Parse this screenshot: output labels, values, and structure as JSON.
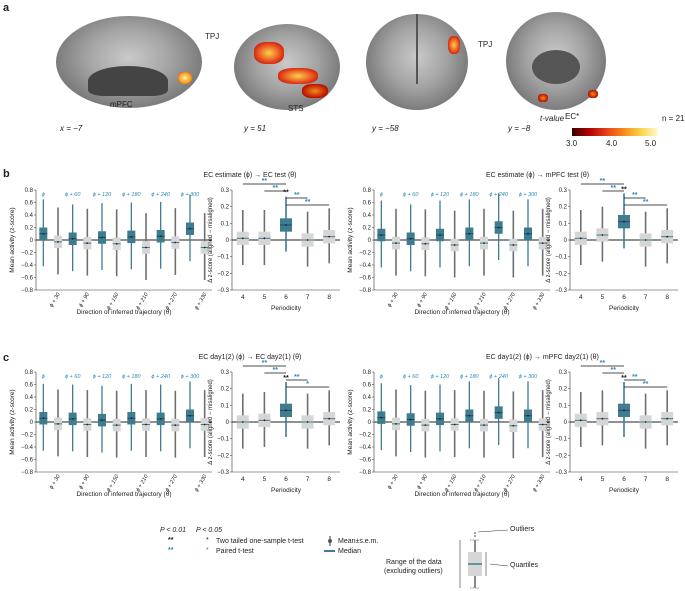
{
  "panel_a": {
    "letter": "a",
    "labels": {
      "mpfc": "mPFC",
      "tpj_left": "TPJ",
      "sts": "STS",
      "tpj_right": "TPJ",
      "ec": "EC*"
    },
    "coords": [
      "x = −7",
      "y = 51",
      "y = −58",
      "y = −8"
    ],
    "colorbar": {
      "title": "t-value",
      "n_label": "n = 21",
      "ticks": [
        "3.0",
        "4.0",
        "5.0"
      ]
    }
  },
  "panel_b": {
    "letter": "b"
  },
  "panel_c": {
    "letter": "c"
  },
  "common": {
    "dir_xlabel": "Direction of inferred trajectory (θ)",
    "dir_ylabel": "Mean activity (z-score)",
    "per_xlabel": "Periodicity",
    "per_ylabel": "Δ z-score (aligned − misaligned)",
    "dir_yticks": [
      "0.8",
      "0.6",
      "0.4",
      "0.2",
      "0",
      "−0.2",
      "−0.4",
      "−0.6",
      "−0.8"
    ],
    "per_yticks": [
      "0.3",
      "0.2",
      "0.1",
      "0",
      "−0.1",
      "−0.2",
      "−0.3"
    ],
    "phi_top": [
      "ϕ",
      "ϕ + 60",
      "ϕ + 120",
      "ϕ + 180",
      "ϕ + 240",
      "ϕ + 300"
    ],
    "phi_bottom": [
      "ϕ + 30",
      "ϕ + 90",
      "ϕ + 150",
      "ϕ + 210",
      "ϕ + 270",
      "ϕ + 330"
    ],
    "periodicity_ticks": [
      "4",
      "5",
      "6",
      "7",
      "8"
    ]
  },
  "chart_data": [
    {
      "id": "b-left-direction",
      "type": "box",
      "title": "EC estimate (ϕ) → EC test (θ)",
      "xlabel": "Direction of inferred trajectory (θ)",
      "ylabel": "Mean activity (z-score)",
      "ylim": [
        -0.8,
        0.8
      ],
      "categories": [
        "ϕ",
        "ϕ + 30",
        "ϕ + 60",
        "ϕ + 90",
        "ϕ + 120",
        "ϕ + 150",
        "ϕ + 180",
        "ϕ + 210",
        "ϕ + 240",
        "ϕ + 270",
        "ϕ + 300",
        "ϕ + 330"
      ],
      "medians": [
        0.1,
        -0.03,
        0.02,
        -0.05,
        0.04,
        -0.06,
        0.05,
        -0.12,
        0.06,
        -0.04,
        0.18,
        -0.12
      ]
    },
    {
      "id": "b-left-periodicity",
      "type": "box",
      "title": "",
      "xlabel": "Periodicity",
      "ylabel": "Δ z-score (aligned − misaligned)",
      "ylim": [
        -0.3,
        0.3
      ],
      "categories": [
        "4",
        "5",
        "6",
        "7",
        "8"
      ],
      "medians": [
        0.01,
        0.01,
        0.09,
        0.0,
        0.02
      ],
      "annotations": [
        "**",
        "**",
        "**",
        "**",
        "**"
      ]
    },
    {
      "id": "b-right-direction",
      "type": "box",
      "title": "EC estimate (ϕ) → mPFC test (θ)",
      "xlabel": "Direction of inferred trajectory (θ)",
      "ylabel": "Mean activity (z-score)",
      "ylim": [
        -0.8,
        0.8
      ],
      "categories": [
        "ϕ",
        "ϕ + 30",
        "ϕ + 60",
        "ϕ + 90",
        "ϕ + 120",
        "ϕ + 150",
        "ϕ + 180",
        "ϕ + 210",
        "ϕ + 240",
        "ϕ + 270",
        "ϕ + 300",
        "ϕ + 330"
      ],
      "medians": [
        0.08,
        -0.05,
        0.02,
        -0.06,
        0.08,
        -0.08,
        0.1,
        -0.05,
        0.2,
        -0.08,
        0.1,
        -0.05
      ]
    },
    {
      "id": "b-right-periodicity",
      "type": "box",
      "title": "",
      "xlabel": "Periodicity",
      "ylabel": "Δ z-score (aligned − misaligned)",
      "ylim": [
        -0.3,
        0.3
      ],
      "categories": [
        "4",
        "5",
        "6",
        "7",
        "8"
      ],
      "medians": [
        0.01,
        0.03,
        0.11,
        0.0,
        0.02
      ],
      "annotations": [
        "**",
        "**",
        "**",
        "**",
        "**"
      ]
    },
    {
      "id": "c-left-direction",
      "type": "box",
      "title": "EC day1(2) (ϕ) → EC day2(1) (θ)",
      "xlabel": "Direction of inferred trajectory (θ)",
      "ylabel": "Mean activity (z-score)",
      "ylim": [
        -0.8,
        0.8
      ],
      "categories": [
        "ϕ",
        "ϕ + 30",
        "ϕ + 60",
        "ϕ + 90",
        "ϕ + 120",
        "ϕ + 150",
        "ϕ + 180",
        "ϕ + 210",
        "ϕ + 240",
        "ϕ + 270",
        "ϕ + 300",
        "ϕ + 330"
      ],
      "medians": [
        0.06,
        -0.03,
        0.05,
        -0.04,
        0.03,
        -0.05,
        0.06,
        -0.04,
        0.05,
        -0.05,
        0.1,
        -0.04
      ]
    },
    {
      "id": "c-left-periodicity",
      "type": "box",
      "title": "",
      "xlabel": "Periodicity",
      "ylabel": "Δ z-score (aligned − misaligned)",
      "ylim": [
        -0.3,
        0.3
      ],
      "categories": [
        "4",
        "5",
        "6",
        "7",
        "8"
      ],
      "medians": [
        0.0,
        0.01,
        0.07,
        0.0,
        0.02
      ],
      "annotations": [
        "**",
        "**",
        "**",
        "*",
        "*"
      ]
    },
    {
      "id": "c-right-direction",
      "type": "box",
      "title": "EC day1(2) (ϕ) → mPFC day2(1) (θ)",
      "xlabel": "Direction of inferred trajectory (θ)",
      "ylabel": "Mean activity (z-score)",
      "ylim": [
        -0.8,
        0.8
      ],
      "categories": [
        "ϕ",
        "ϕ + 30",
        "ϕ + 60",
        "ϕ + 90",
        "ϕ + 120",
        "ϕ + 150",
        "ϕ + 180",
        "ϕ + 210",
        "ϕ + 240",
        "ϕ + 270",
        "ϕ + 300",
        "ϕ + 330"
      ],
      "medians": [
        0.07,
        -0.03,
        0.04,
        -0.05,
        0.05,
        -0.04,
        0.1,
        -0.05,
        0.15,
        -0.06,
        0.1,
        -0.04
      ]
    },
    {
      "id": "c-right-periodicity",
      "type": "box",
      "title": "",
      "xlabel": "Periodicity",
      "ylabel": "Δ z-score (aligned − misaligned)",
      "ylim": [
        -0.3,
        0.3
      ],
      "categories": [
        "4",
        "5",
        "6",
        "7",
        "8"
      ],
      "medians": [
        0.01,
        0.02,
        0.07,
        0.0,
        0.02
      ],
      "annotations": [
        "**",
        "**",
        "**",
        "**",
        "**"
      ]
    }
  ],
  "legend": {
    "p01": "P < 0.01",
    "p05": "P < 0.05",
    "black_stars": "**",
    "blue_stars": "**",
    "one_sample": "Two tailed one-sample t-test",
    "paired": "Paired t-test",
    "mean_sem": "Mean±s.e.m.",
    "median": "Median",
    "range": "Range of the data",
    "excluding": "(excluding outliers)",
    "outliers": "Outliers",
    "quartiles": "Quartiles"
  },
  "colors": {
    "teal": "#3f7c90",
    "light_gray": "#d6d6d6",
    "dark_gray": "#6f6f6f",
    "blue_text": "#2b87b8"
  }
}
